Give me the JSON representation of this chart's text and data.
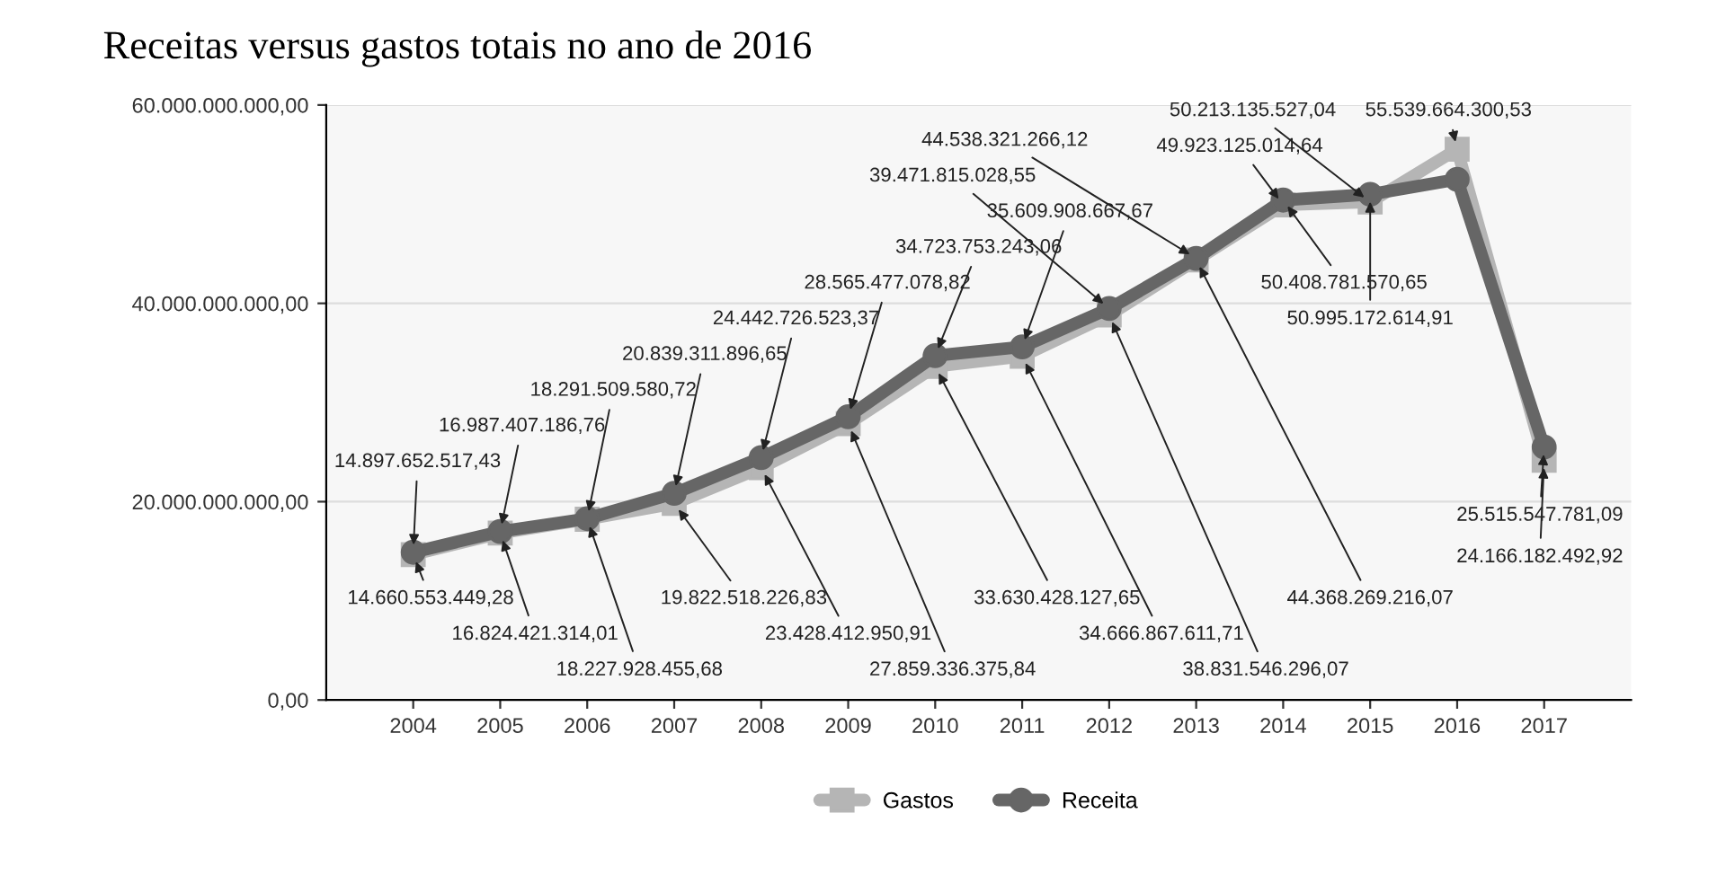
{
  "chart_data": {
    "type": "line",
    "title": "Receitas versus gastos totais no ano de 2016",
    "categories": [
      "2004",
      "2005",
      "2006",
      "2007",
      "2008",
      "2009",
      "2010",
      "2011",
      "2012",
      "2013",
      "2014",
      "2015",
      "2016",
      "2017"
    ],
    "series": [
      {
        "name": "Gastos",
        "color": "#b5b5b5",
        "marker": "square",
        "values": [
          14660553449.28,
          16824421314.01,
          18227928455.68,
          19822518226.83,
          23428412950.91,
          27859336375.84,
          33630428127.65,
          34666867611.71,
          38831546296.07,
          44368269216.07,
          49923125014.64,
          50213135527.04,
          55539664300.53,
          24166182492.92
        ],
        "value_labels": [
          "14.660.553.449,28",
          "16.824.421.314,01",
          "18.227.928.455,68",
          "19.822.518.226,83",
          "23.428.412.950,91",
          "27.859.336.375,84",
          "33.630.428.127,65",
          "34.666.867.611,71",
          "38.831.546.296,07",
          "44.368.269.216,07",
          "49.923.125.014,64",
          "50.213.135.527,04",
          "55.539.664.300,53",
          "24.166.182.492,92"
        ]
      },
      {
        "name": "Receita",
        "color": "#666666",
        "marker": "circle",
        "values": [
          14897652517.43,
          16987407186.76,
          18291509580.72,
          20839311896.65,
          24442726523.37,
          28565477078.82,
          34723753243.06,
          35609908667.67,
          39471815028.55,
          44538321266.12,
          50408781570.65,
          50995172614.91,
          52500000000,
          25515547781.09
        ],
        "value_labels": [
          "14.897.652.517,43",
          "16.987.407.186,76",
          "18.291.509.580,72",
          "20.839.311.896,65",
          "24.442.726.523,37",
          "28.565.477.078,82",
          "34.723.753.243,06",
          "35.609.908.667,67",
          "39.471.815.028,55",
          "44.538.321.266,12",
          "50.408.781.570,65",
          "50.995.172.614,91",
          null,
          "25.515.547.781,09"
        ]
      }
    ],
    "ylim": [
      0,
      60000000000
    ],
    "yticks": [
      {
        "value": 0,
        "label": "0,00"
      },
      {
        "value": 20000000000,
        "label": "20.000.000.000,00"
      },
      {
        "value": 40000000000,
        "label": "40.000.000.000,00"
      },
      {
        "value": 60000000000,
        "label": "60.000.000.000,00"
      }
    ],
    "grid": "y",
    "legend": "bottom",
    "line_style": "solid"
  }
}
